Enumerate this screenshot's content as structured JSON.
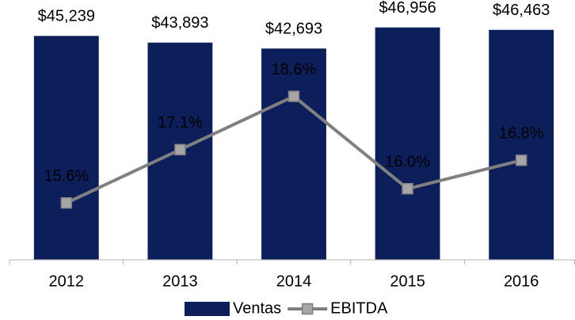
{
  "chart_data": {
    "type": "bar",
    "categories": [
      "2012",
      "2013",
      "2014",
      "2015",
      "2016"
    ],
    "series": [
      {
        "name": "Ventas",
        "type": "bar",
        "color": "#0c1f5b",
        "values": [
          45239,
          43893,
          42693,
          46956,
          46463
        ],
        "value_labels": [
          "$45,239",
          "$43,893",
          "$42,693",
          "$46,956",
          "$46,463"
        ]
      },
      {
        "name": "EBITDA",
        "type": "line",
        "axis": "y2",
        "color": "#808080",
        "marker_color": "#a6a6a6",
        "values": [
          15.6,
          17.1,
          18.6,
          16.0,
          16.8
        ],
        "value_labels": [
          "15.6%",
          "17.1%",
          "18.6%",
          "16.0%",
          "16.8%"
        ]
      }
    ],
    "ylim": [
      0,
      51700
    ],
    "y2lim": [
      14,
      21.2
    ],
    "legend": "bottom"
  }
}
